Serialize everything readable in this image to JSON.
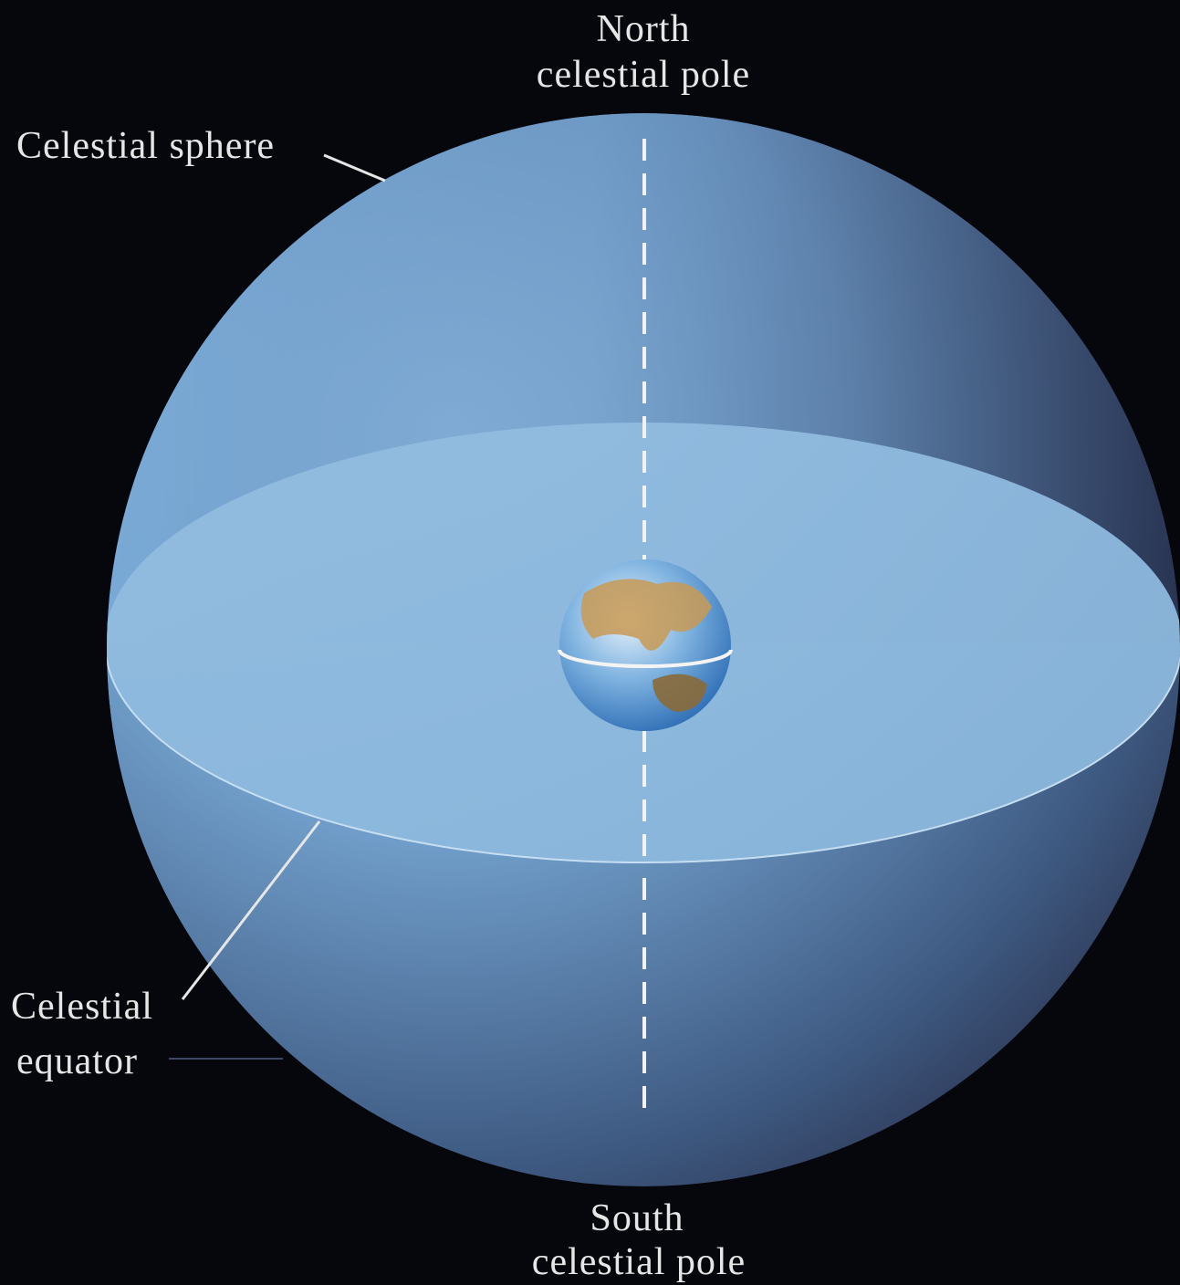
{
  "labels": {
    "north_pole": {
      "lines": [
        "North",
        "celestial pole"
      ]
    },
    "celestial_sphere": "Celestial sphere",
    "celestial_equator": {
      "lines": [
        "Celestial",
        "equator"
      ]
    },
    "south_pole": {
      "lines": [
        "South",
        "celestial pole"
      ]
    }
  }
}
